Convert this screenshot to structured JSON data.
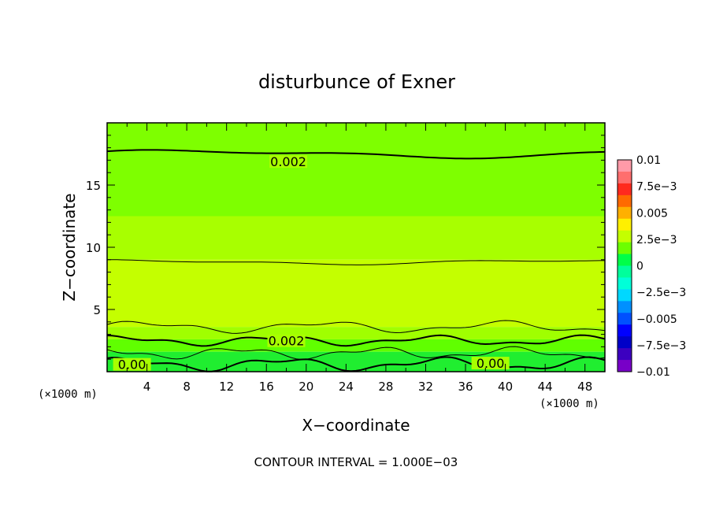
{
  "chart_data": {
    "type": "heatmap",
    "title": "disturbunce of Exner",
    "xlabel": "X−coordinate",
    "ylabel": "Z−coordinate",
    "x_unit_left": "(×1000 m)",
    "x_unit_right": "(×1000 m)",
    "footer": "CONTOUR INTERVAL = 1.000E−03",
    "xlim": [
      0,
      50
    ],
    "ylim": [
      0,
      20
    ],
    "x_ticks": [
      4,
      8,
      12,
      16,
      20,
      24,
      28,
      32,
      36,
      40,
      44,
      48
    ],
    "y_ticks": [
      5,
      10,
      15
    ],
    "colorbar": {
      "range": [
        -0.01,
        0.01
      ],
      "labels": [
        "0.01",
        "7.5e−3",
        "0.005",
        "2.5e−3",
        "0",
        "−2.5e−3",
        "−0.005",
        "−7.5e−3",
        "−0.01"
      ],
      "colors": [
        "#ff9aa8",
        "#ff6e6e",
        "#ff2a1e",
        "#ff6a00",
        "#ffb000",
        "#fff000",
        "#c4ff00",
        "#6cff00",
        "#00ff48",
        "#00ff9c",
        "#00ffd8",
        "#00d8ff",
        "#0090ff",
        "#0050ff",
        "#0000ff",
        "#0000c8",
        "#3c00c0",
        "#7800c8"
      ]
    },
    "contour_labels": [
      {
        "text": "0.002",
        "x": 18.2,
        "z": 16.7
      },
      {
        "text": "0.002",
        "x": 18.0,
        "z": 2.3
      },
      {
        "text": "0.00",
        "x": 2.5,
        "z": 0.4
      },
      {
        "text": "0.00",
        "x": 38.5,
        "z": 0.5
      }
    ],
    "bands": [
      {
        "z_bottom": 12.5,
        "z_top": 20,
        "value": 0.002,
        "color": "#7eff00"
      },
      {
        "z_bottom": 9,
        "z_top": 12.5,
        "value": 0.0025,
        "color": "#a8ff00"
      },
      {
        "z_bottom": 3.6,
        "z_top": 9,
        "value": 0.003,
        "color": "#c4ff00"
      },
      {
        "z_bottom": 2.6,
        "z_top": 3.6,
        "value": 0.002,
        "color": "#a0ff00"
      },
      {
        "z_bottom": 1.6,
        "z_top": 2.6,
        "value": 0.001,
        "color": "#60ff00"
      },
      {
        "z_bottom": 0,
        "z_top": 1.6,
        "value": 0.0,
        "color": "#20ee30"
      }
    ]
  }
}
